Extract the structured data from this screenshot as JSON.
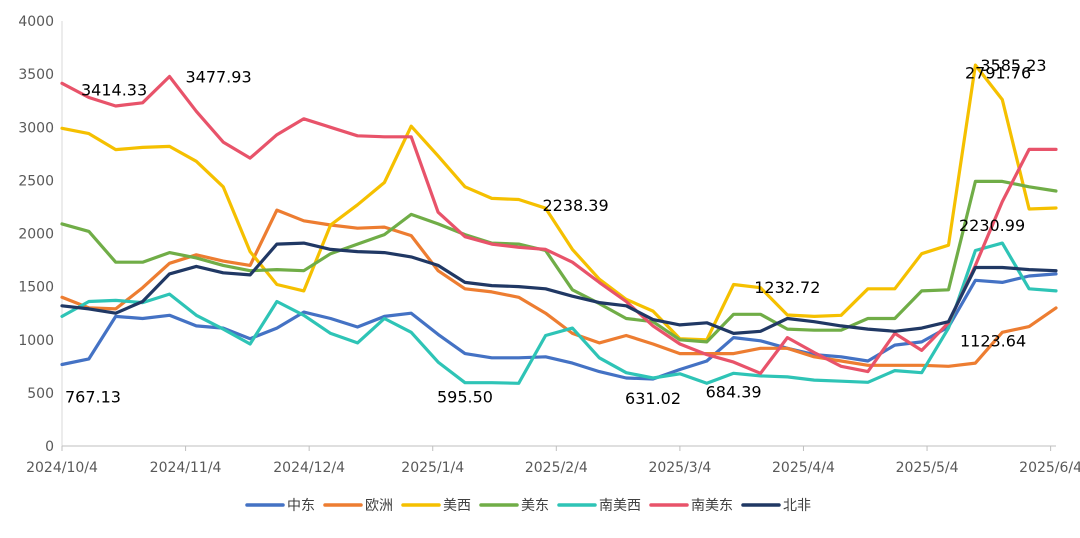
{
  "chart_data": {
    "type": "line",
    "title": "",
    "xlabel": "",
    "ylabel": "",
    "ylim": [
      0,
      4000
    ],
    "yticks": [
      0,
      500,
      1000,
      1500,
      2000,
      2500,
      3000,
      3500,
      4000
    ],
    "x_tick_labels": [
      "2024/10/4",
      "2024/11/4",
      "2024/12/4",
      "2025/1/4",
      "2025/2/4",
      "2025/3/4",
      "2025/4/4",
      "2025/5/4",
      "2025/6/4"
    ],
    "x_tick_index": [
      0,
      4.6,
      9.2,
      13.8,
      18.4,
      23,
      27.6,
      32.2,
      36.8
    ],
    "n_points": 38,
    "legend_position": "bottom",
    "series": [
      {
        "name": "中东",
        "color": "#4472C4",
        "values": [
          767,
          820,
          1220,
          1200,
          1230,
          1130,
          1110,
          1010,
          1110,
          1260,
          1200,
          1120,
          1220,
          1250,
          1050,
          870,
          830,
          830,
          840,
          780,
          700,
          640,
          631,
          720,
          800,
          1020,
          990,
          920,
          860,
          840,
          800,
          950,
          980,
          1120,
          1560,
          1540,
          1600,
          1620
        ]
      },
      {
        "name": "欧洲",
        "color": "#ED7D31",
        "values": [
          1400,
          1300,
          1290,
          1490,
          1720,
          1800,
          1740,
          1700,
          2220,
          2120,
          2080,
          2050,
          2060,
          1980,
          1650,
          1480,
          1450,
          1400,
          1250,
          1060,
          970,
          1040,
          960,
          870,
          870,
          870,
          920,
          920,
          840,
          800,
          760,
          760,
          760,
          750,
          780,
          1070,
          1124,
          1300
        ]
      },
      {
        "name": "美西",
        "color": "#F5C000",
        "values": [
          2990,
          2940,
          2790,
          2810,
          2820,
          2680,
          2440,
          1830,
          1520,
          1460,
          2080,
          2270,
          2480,
          3010,
          2730,
          2440,
          2330,
          2320,
          2238,
          1850,
          1570,
          1380,
          1270,
          1010,
          1000,
          1520,
          1490,
          1233,
          1220,
          1230,
          1480,
          1480,
          1810,
          1890,
          3585,
          3260,
          2231,
          2240
        ]
      },
      {
        "name": "美东",
        "color": "#70AD47",
        "values": [
          2090,
          2020,
          1730,
          1730,
          1820,
          1770,
          1700,
          1650,
          1660,
          1650,
          1810,
          1900,
          1990,
          2180,
          2090,
          1990,
          1910,
          1900,
          1840,
          1470,
          1340,
          1200,
          1170,
          1000,
          980,
          1240,
          1240,
          1100,
          1090,
          1090,
          1200,
          1200,
          1460,
          1470,
          2490,
          2490,
          2440,
          2400
        ]
      },
      {
        "name": "南美西",
        "color": "#2EC4B6",
        "values": [
          1220,
          1360,
          1370,
          1350,
          1430,
          1230,
          1100,
          960,
          1360,
          1230,
          1060,
          970,
          1200,
          1070,
          790,
          596,
          596,
          590,
          1040,
          1110,
          830,
          690,
          640,
          680,
          590,
          684,
          660,
          650,
          620,
          610,
          600,
          710,
          690,
          1110,
          1840,
          1910,
          1480,
          1460
        ]
      },
      {
        "name": "南美东",
        "color": "#E8536A",
        "values": [
          3414,
          3280,
          3200,
          3230,
          3478,
          3150,
          2860,
          2710,
          2930,
          3080,
          3000,
          2920,
          2910,
          2910,
          2200,
          1970,
          1900,
          1870,
          1850,
          1730,
          1540,
          1360,
          1130,
          960,
          860,
          790,
          684,
          1020,
          880,
          750,
          700,
          1060,
          900,
          1160,
          1700,
          2300,
          2792,
          2792
        ]
      },
      {
        "name": "北非",
        "color": "#203864",
        "values": [
          1320,
          1290,
          1250,
          1360,
          1620,
          1690,
          1630,
          1610,
          1900,
          1910,
          1850,
          1830,
          1820,
          1780,
          1700,
          1540,
          1510,
          1500,
          1480,
          1410,
          1350,
          1320,
          1190,
          1140,
          1160,
          1060,
          1080,
          1200,
          1170,
          1130,
          1100,
          1080,
          1110,
          1170,
          1680,
          1680,
          1660,
          1650
        ]
      }
    ],
    "annotations": [
      {
        "text": "3414.33",
        "series": "南美东",
        "index": 0
      },
      {
        "text": "3477.93",
        "series": "南美东",
        "index": 4
      },
      {
        "text": "767.13",
        "series": "中东",
        "index": 0
      },
      {
        "text": "595.50",
        "series": "南美西",
        "index": 15
      },
      {
        "text": "2238.39",
        "series": "美西",
        "index": 18
      },
      {
        "text": "631.02",
        "series": "中东",
        "index": 22
      },
      {
        "text": "684.39",
        "series": "南美西",
        "index": 25
      },
      {
        "text": "1232.72",
        "series": "美西",
        "index": 27
      },
      {
        "text": "3585.23",
        "series": "美西",
        "index": 34
      },
      {
        "text": "2791.76",
        "series": "南美东",
        "index": 36
      },
      {
        "text": "2230.99",
        "series": "美西",
        "index": 36
      },
      {
        "text": "1123.64",
        "series": "欧洲",
        "index": 36
      }
    ]
  }
}
